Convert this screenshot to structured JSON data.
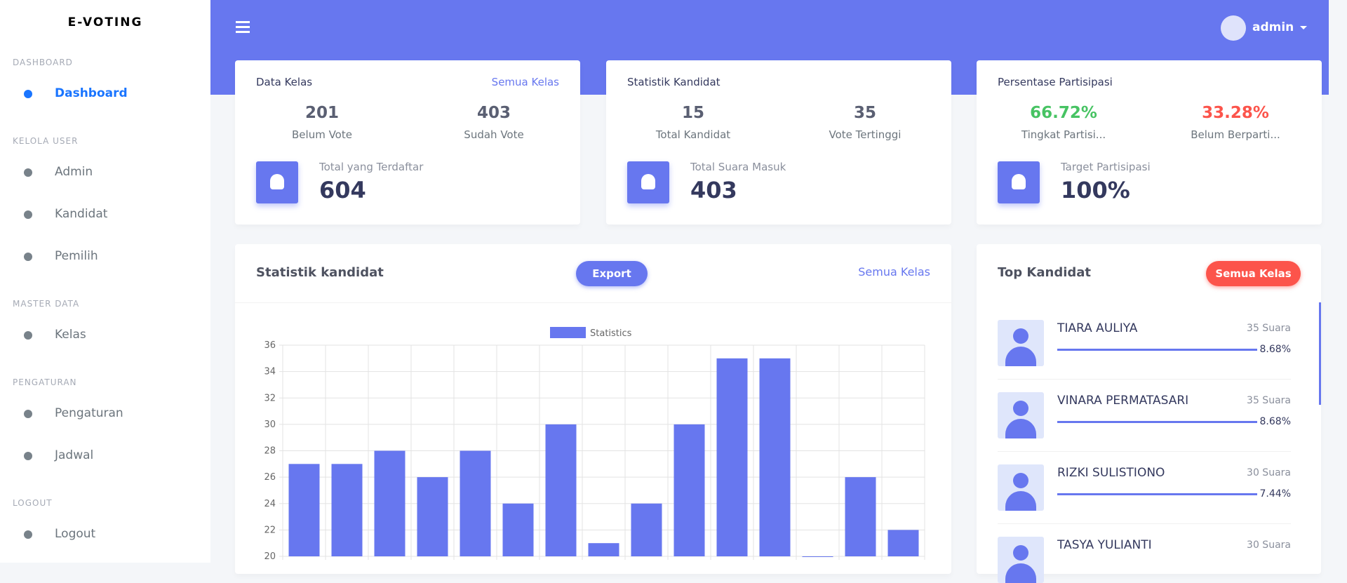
{
  "sidebar": {
    "brand": "E-VOTING",
    "groups": [
      {
        "heading": "DASHBOARD",
        "items": [
          "Dashboard"
        ]
      },
      {
        "heading": "KELOLA USER",
        "items": [
          "Admin",
          "Kandidat",
          "Pemilih"
        ]
      },
      {
        "heading": "MASTER DATA",
        "items": [
          "Kelas"
        ]
      },
      {
        "heading": "PENGATURAN",
        "items": [
          "Pengaturan",
          "Jadwal"
        ]
      },
      {
        "heading": "LOGOUT",
        "items": [
          "Logout"
        ]
      }
    ]
  },
  "header": {
    "user": "admin"
  },
  "cards": [
    {
      "title": "Data Kelas",
      "dropdown": "Semua Kelas",
      "stats": [
        {
          "value": "201",
          "label": "Belum Vote"
        },
        {
          "value": "403",
          "label": "Sudah Vote"
        }
      ],
      "total_label": "Total yang Terdaftar",
      "total": "604"
    },
    {
      "title": "Statistik Kandidat",
      "stats": [
        {
          "value": "15",
          "label": "Total Kandidat"
        },
        {
          "value": "35",
          "label": "Vote Tertinggi"
        }
      ],
      "total_label": "Total Suara Masuk",
      "total": "403"
    },
    {
      "title": "Persentase Partisipasi",
      "stats": [
        {
          "value": "66.72%",
          "label": "Tingkat Partisi...",
          "color": "#47c363"
        },
        {
          "value": "33.28%",
          "label": "Belum Berparti...",
          "color": "#fc544b"
        }
      ],
      "total_label": "Target Partisipasi",
      "total": "100%"
    }
  ],
  "chart_panel": {
    "title": "Statistik kandidat",
    "export": "Export",
    "dropdown": "Semua Kelas"
  },
  "chart_data": {
    "type": "bar",
    "categories": [
      null,
      null,
      null,
      null,
      null,
      null,
      null,
      null,
      null,
      null,
      null,
      null,
      null,
      null,
      null
    ],
    "series": [
      {
        "name": "Statistics",
        "color": "#6777ef",
        "values": [
          27,
          27,
          28,
          26,
          28,
          24,
          30,
          21,
          24,
          30,
          35,
          35,
          20,
          26,
          22
        ]
      }
    ],
    "ylim": [
      20,
      36
    ],
    "yticks": [
      20,
      22,
      24,
      26,
      28,
      30,
      32,
      34,
      36
    ],
    "grid": true
  },
  "top_kandidat": {
    "title": "Top Kandidat",
    "dropdown": "Semua Kelas",
    "items": [
      {
        "name": "TIARA AULIYA",
        "votes": "35 Suara",
        "percent": "8.68%"
      },
      {
        "name": "VINARA PERMATASARI",
        "votes": "35 Suara",
        "percent": "8.68%"
      },
      {
        "name": "RIZKI SULISTIONO",
        "votes": "30 Suara",
        "percent": "7.44%"
      },
      {
        "name": "TASYA YULIANTI",
        "votes": "30 Suara"
      }
    ]
  }
}
